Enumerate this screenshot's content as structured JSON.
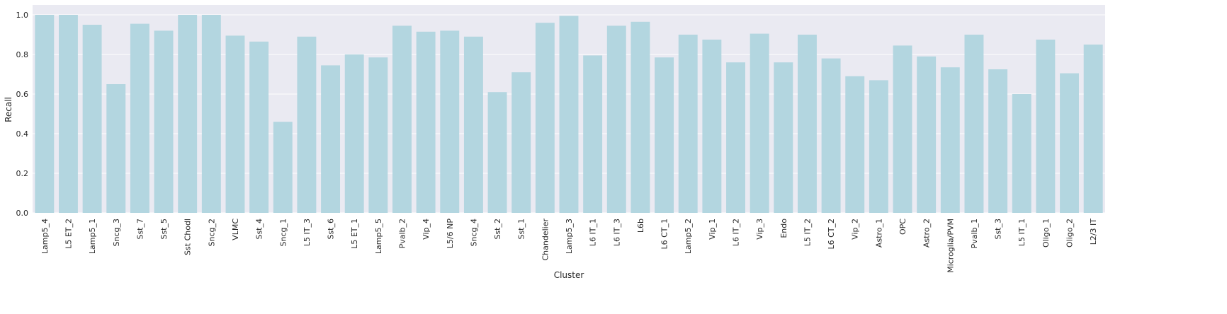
{
  "chart_data": {
    "type": "bar",
    "xlabel": "Cluster",
    "ylabel": "Recall",
    "ylim": [
      0,
      1.05
    ],
    "yticks": [
      "0.0",
      "0.2",
      "0.4",
      "0.6",
      "0.8",
      "1.0"
    ],
    "grid": true,
    "bar_color": "#b3d6e0",
    "background_color": "#eaeaf2",
    "categories": [
      "Lamp5_4",
      "L5 ET_2",
      "Lamp5_1",
      "Sncg_3",
      "Sst_7",
      "Sst_5",
      "Sst Chodl",
      "Sncg_2",
      "VLMC",
      "Sst_4",
      "Sncg_1",
      "L5 IT_3",
      "Sst_6",
      "L5 ET_1",
      "Lamp5_5",
      "Pvalb_2",
      "Vip_4",
      "L5/6 NP",
      "Sncg_4",
      "Sst_2",
      "Sst_1",
      "Chandelier",
      "Lamp5_3",
      "L6 IT_1",
      "L6 IT_3",
      "L6b",
      "L6 CT_1",
      "Lamp5_2",
      "Vip_1",
      "L6 IT_2",
      "Vip_3",
      "Endo",
      "L5 IT_2",
      "L6 CT_2",
      "Vip_2",
      "Astro_1",
      "OPC",
      "Astro_2",
      "Microglia/PVM",
      "Pvalb_1",
      "Sst_3",
      "L5 IT_1",
      "Oligo_1",
      "Oligo_2",
      "L2/3 IT"
    ],
    "values": [
      1.0,
      1.0,
      0.95,
      0.65,
      0.955,
      0.92,
      1.0,
      1.0,
      0.895,
      0.865,
      0.46,
      0.89,
      0.745,
      0.8,
      0.785,
      0.945,
      0.915,
      0.92,
      0.89,
      0.61,
      0.71,
      0.96,
      0.995,
      0.795,
      0.945,
      0.965,
      0.785,
      0.9,
      0.875,
      0.76,
      0.905,
      0.76,
      0.9,
      0.78,
      0.69,
      0.67,
      0.845,
      0.79,
      0.735,
      0.9,
      0.725,
      0.6,
      0.875,
      0.705,
      0.85
    ]
  }
}
